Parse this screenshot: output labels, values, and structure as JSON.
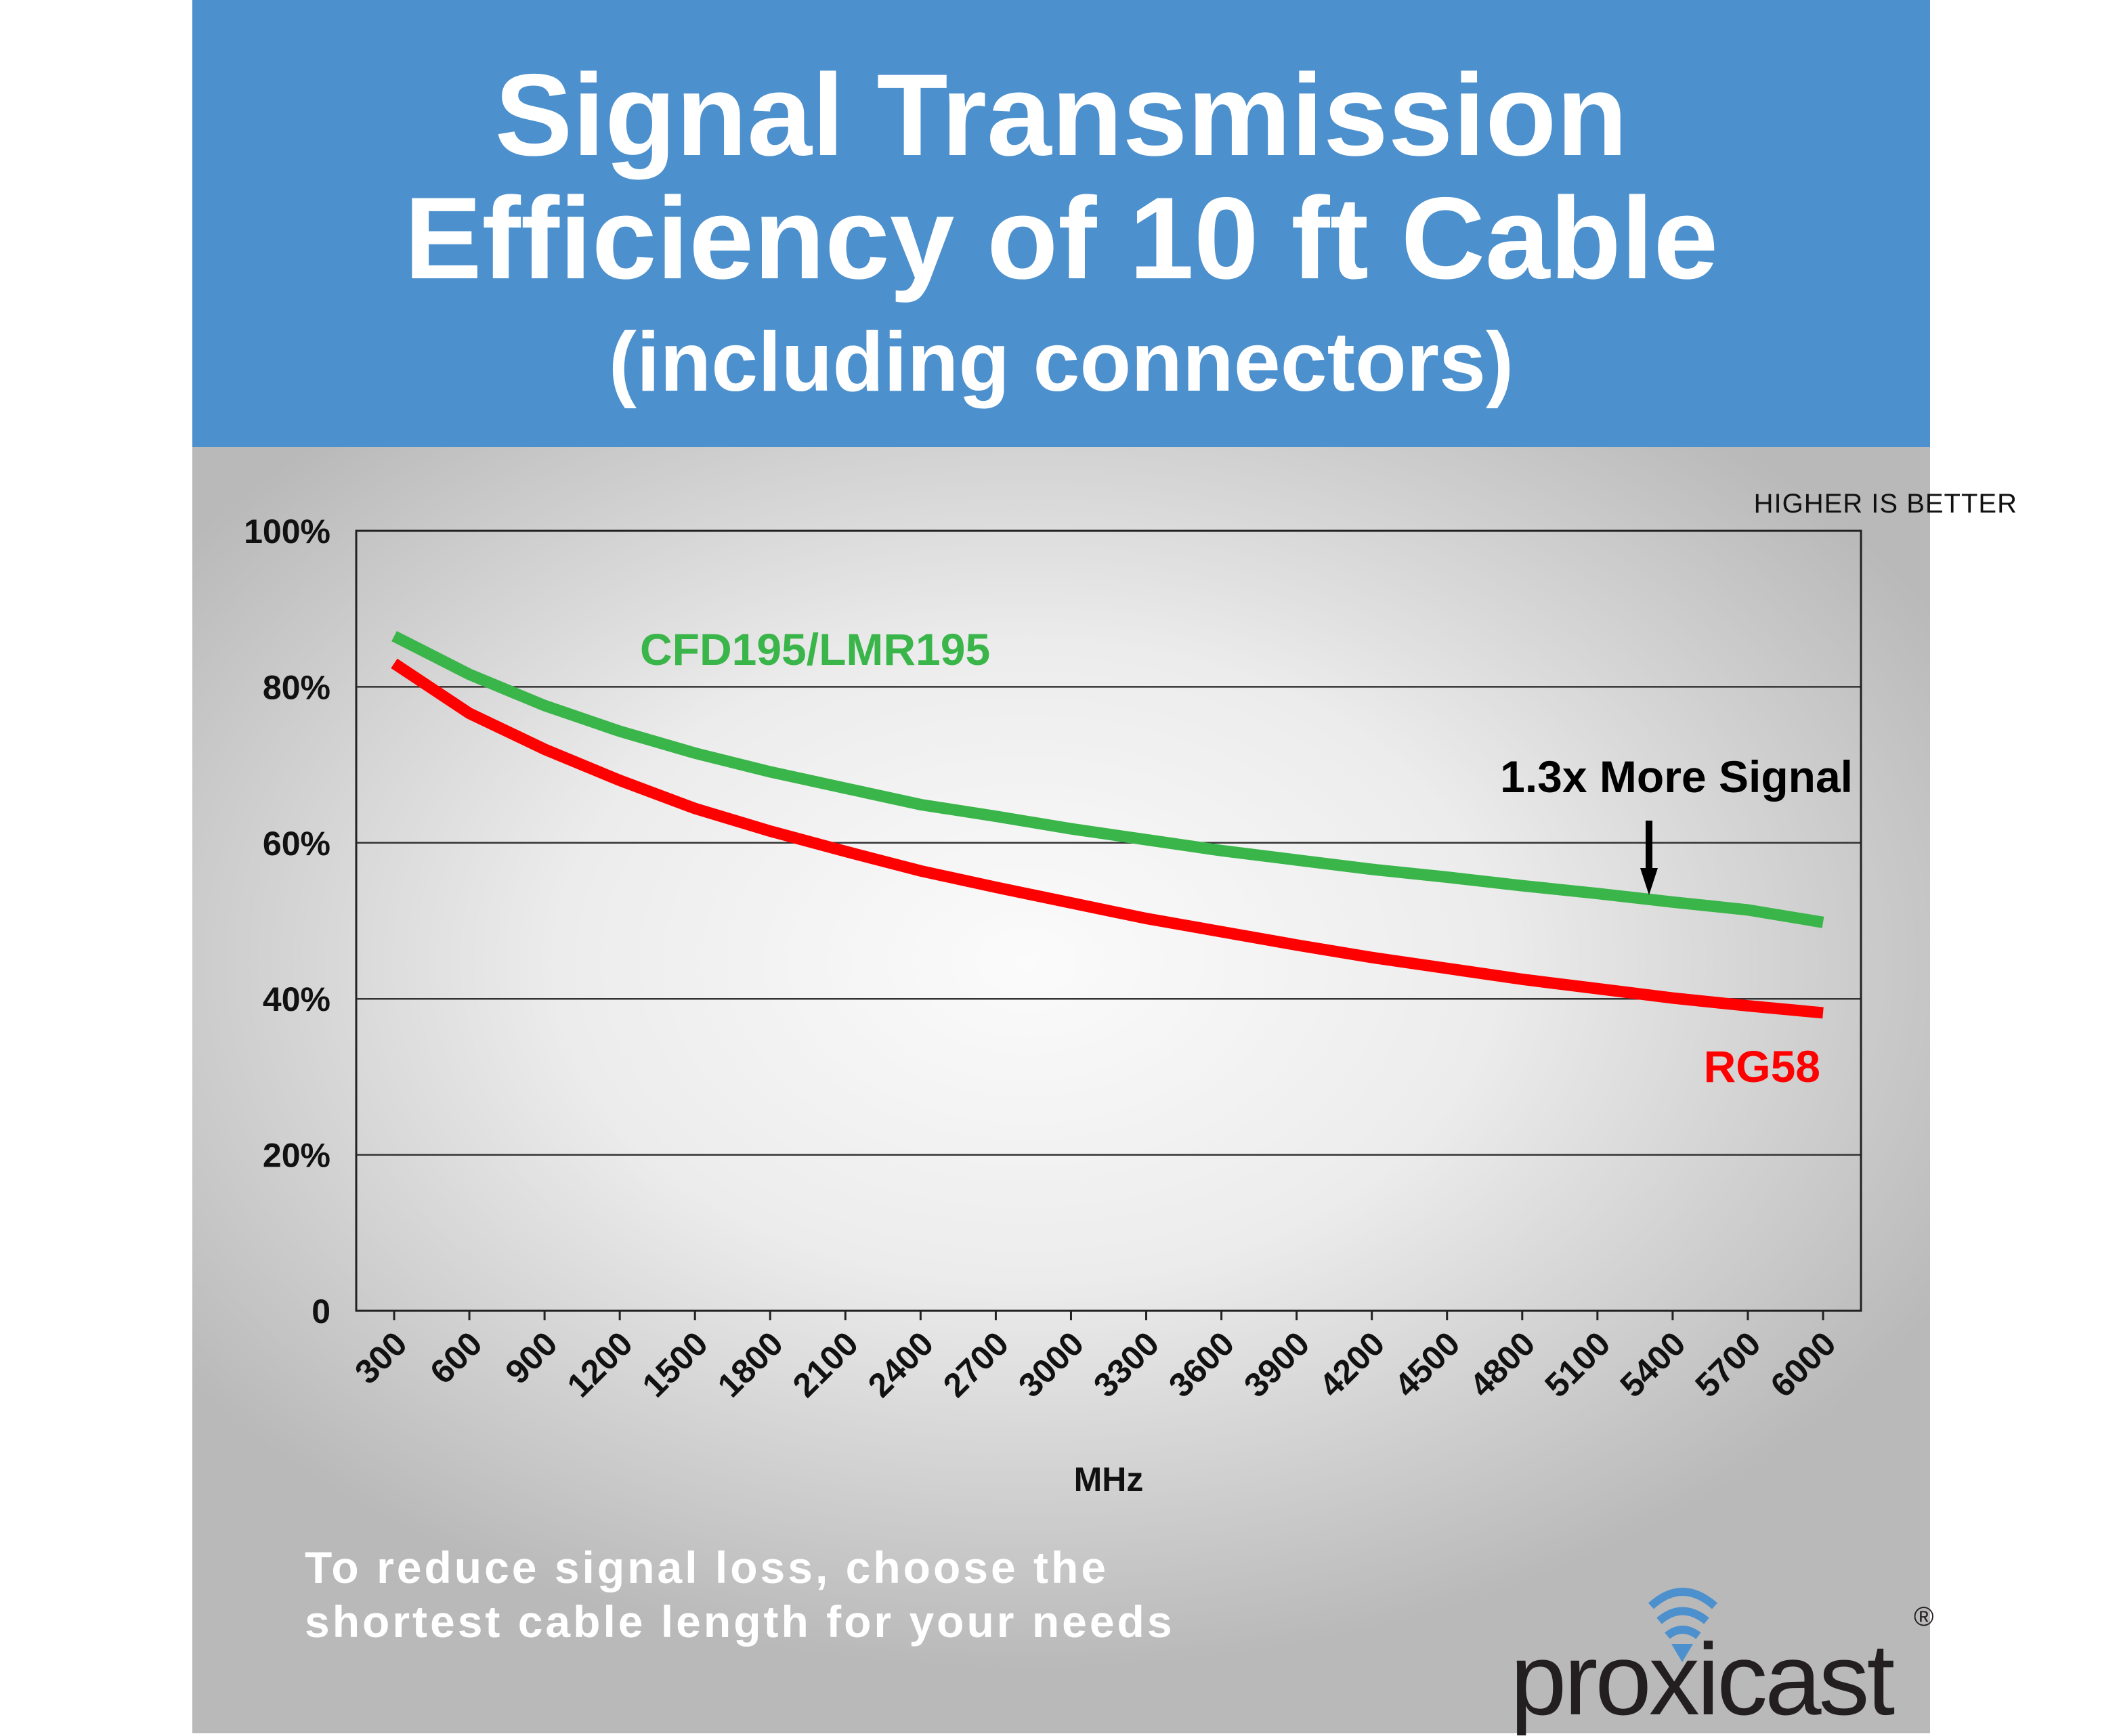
{
  "header": {
    "line1": "Signal Transmission",
    "line2": "Efficiency of 10 ft Cable",
    "line3": "(including connectors)"
  },
  "note": "HIGHER IS BETTER",
  "annotation": "1.3x More Signal",
  "footer": {
    "line1": "To reduce signal loss, choose the",
    "line2": "shortest cable length for your needs"
  },
  "logo": {
    "text": "proxicast",
    "mark": "®"
  },
  "colors": {
    "header": "#4c90cd",
    "green": "#3ab54a",
    "red": "#ff0000"
  },
  "chart_data": {
    "type": "line",
    "title": "Signal Transmission Efficiency of 10 ft Cable (including connectors)",
    "xlabel": "MHz",
    "ylabel": "",
    "ylim": [
      0,
      100
    ],
    "yticks": [
      "0",
      "20%",
      "40%",
      "60%",
      "80%",
      "100%"
    ],
    "ytick_values": [
      0,
      20,
      40,
      60,
      80,
      100
    ],
    "x": [
      300,
      600,
      900,
      1200,
      1500,
      1800,
      2100,
      2400,
      2700,
      3000,
      3300,
      3600,
      3900,
      4200,
      4500,
      4800,
      5100,
      5400,
      5700,
      6000
    ],
    "grid": true,
    "series": [
      {
        "name": "CFD195/LMR195",
        "color": "#3ab54a",
        "values": [
          86.5,
          81.6,
          77.6,
          74.3,
          71.5,
          69.1,
          67.0,
          64.9,
          63.4,
          61.8,
          60.4,
          59.0,
          57.8,
          56.6,
          55.6,
          54.5,
          53.5,
          52.4,
          51.4,
          49.8
        ]
      },
      {
        "name": "RG58",
        "color": "#ff0000",
        "values": [
          83.0,
          76.6,
          72.0,
          68.0,
          64.4,
          61.5,
          58.9,
          56.4,
          54.3,
          52.3,
          50.3,
          48.6,
          46.9,
          45.3,
          43.9,
          42.5,
          41.3,
          40.1,
          39.1,
          38.2
        ]
      }
    ]
  }
}
